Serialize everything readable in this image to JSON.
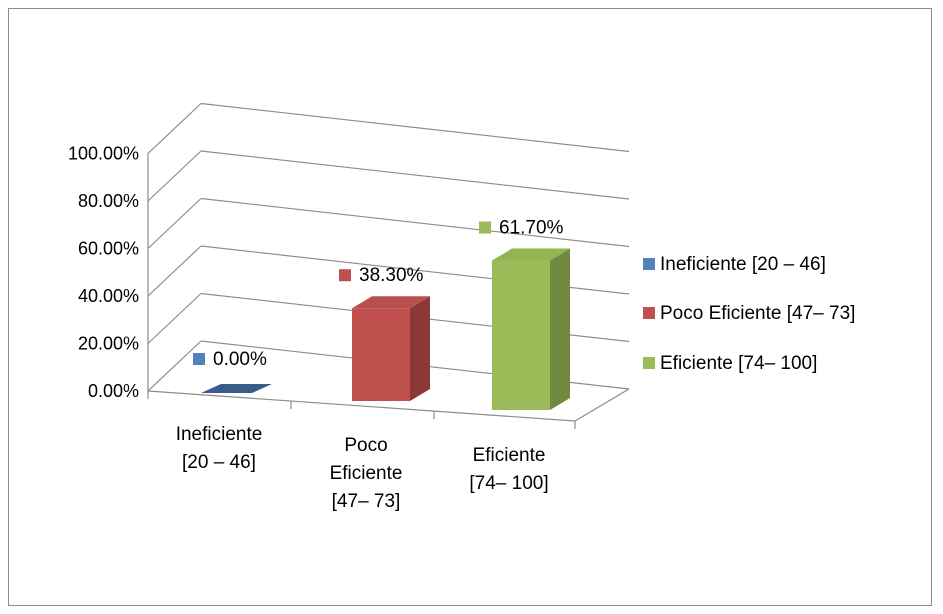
{
  "chart_data": {
    "type": "bar",
    "title": "",
    "xlabel": "",
    "ylabel": "",
    "ylim": [
      0,
      100
    ],
    "yticks": [
      "0.00%",
      "20.00%",
      "40.00%",
      "60.00%",
      "80.00%",
      "100.00%"
    ],
    "categories": [
      [
        "Ineficiente",
        "[20 – 46]"
      ],
      [
        "Poco",
        "Eficiente",
        "[47– 73]"
      ],
      [
        "Eficiente",
        "[74– 100]"
      ]
    ],
    "values": [
      0.0,
      38.3,
      61.7
    ],
    "data_labels": [
      "0.00%",
      "38.30%",
      "61.70%"
    ],
    "legend": {
      "position": "right",
      "entries": [
        "Ineficiente [20 – 46]",
        "Poco Eficiente [47– 73]",
        "Eficiente [74– 100]"
      ]
    },
    "colors": {
      "front": [
        "#4f81bd",
        "#c0504d",
        "#9bbb59"
      ],
      "side": [
        "#385d8a",
        "#8c3836",
        "#71893f"
      ],
      "top": [
        "#3a6699",
        "#b7504e",
        "#93b452"
      ]
    },
    "grid": true,
    "three_d": true
  }
}
